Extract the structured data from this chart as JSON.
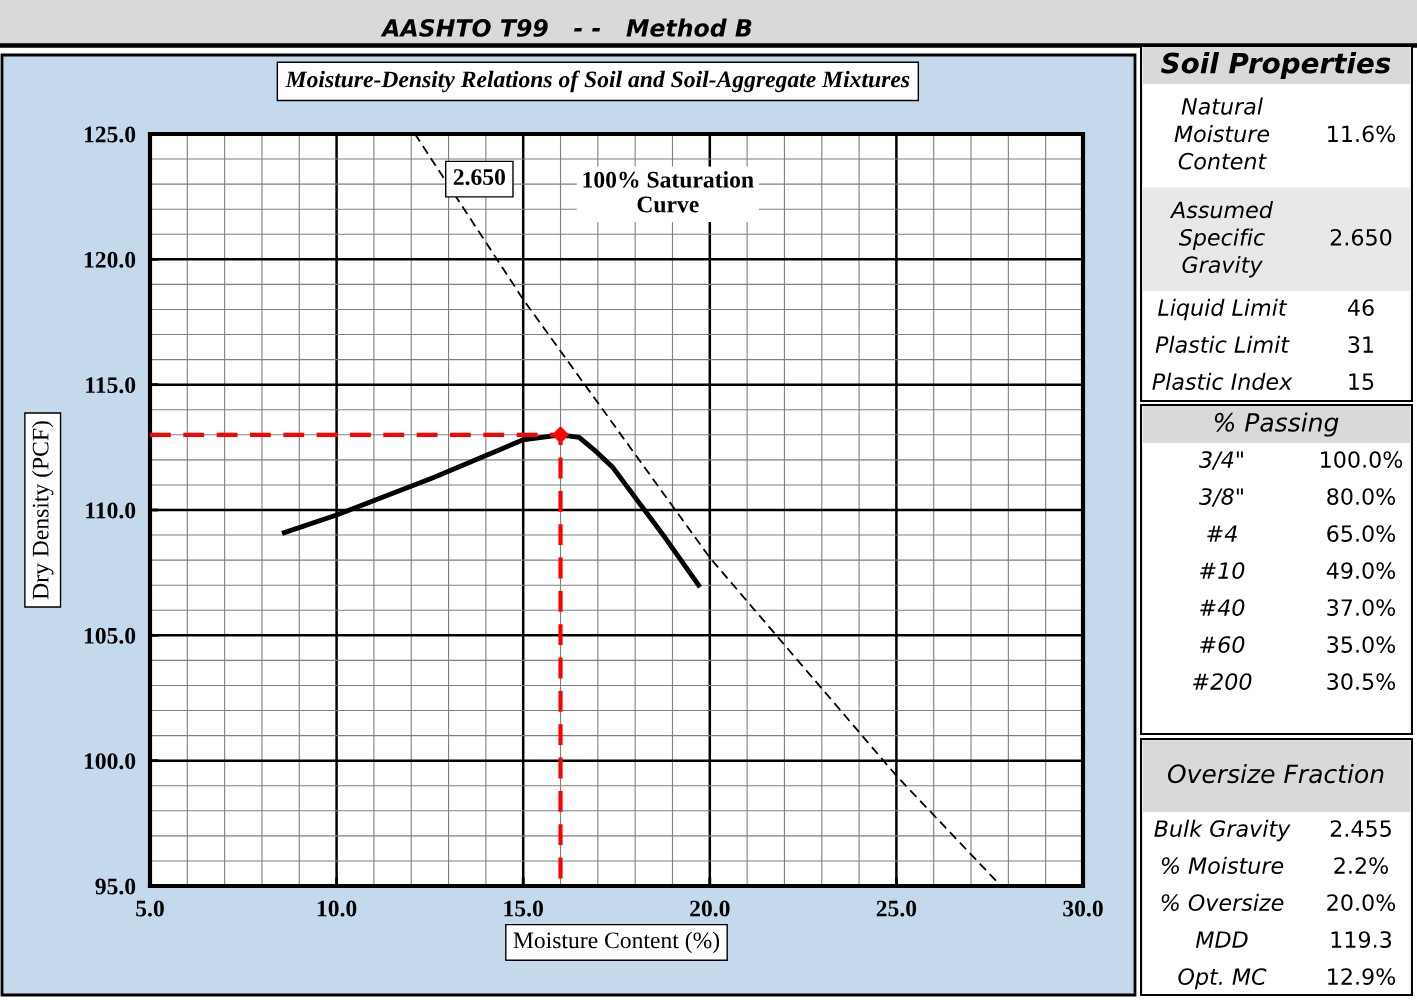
{
  "chart_data": [
    {
      "type": "line",
      "title": "AASHTO T99   - -   Method B",
      "subtitle": "Moisture-Density Relations of Soil and Soil-Aggregate Mixtures",
      "xlabel": "Moisture Content (%)",
      "ylabel": "Dry Density (PCF)",
      "xlim": [
        5,
        30
      ],
      "ylim": [
        95,
        125
      ],
      "xticks": [
        {
          "value": 5,
          "label": "5.0"
        },
        {
          "value": 10,
          "label": "10.0"
        },
        {
          "value": 15,
          "label": "15.0"
        },
        {
          "value": 20,
          "label": "20.0"
        },
        {
          "value": 25,
          "label": "25.0"
        },
        {
          "value": 30,
          "label": "30.0"
        }
      ],
      "yticks": [
        {
          "value": 95,
          "label": "95.0"
        },
        {
          "value": 100,
          "label": "100.0"
        },
        {
          "value": 105,
          "label": "105.0"
        },
        {
          "value": 110,
          "label": "110.0"
        },
        {
          "value": 115,
          "label": "115.0"
        },
        {
          "value": 120,
          "label": "120.0"
        },
        {
          "value": 125,
          "label": "125.0"
        }
      ],
      "grid": true,
      "series": [
        {
          "type": "line",
          "color": "#000000",
          "line_style": "solid",
          "marker": "none",
          "x": [
            8.6,
            10.0,
            12.6,
            15.0,
            16.0,
            16.5,
            16.9,
            17.4,
            18.8,
            19.7
          ],
          "values": [
            109.1,
            109.8,
            111.3,
            112.8,
            113.0,
            112.9,
            112.4,
            111.7,
            108.9,
            107.0
          ]
        },
        {
          "type": "line",
          "color": "#000000",
          "line_style": "dashed",
          "marker": "none",
          "x": [
            12.1,
            15.0,
            20.0,
            25.0,
            27.8
          ],
          "values": [
            125.0,
            118.4,
            108.1,
            99.4,
            95.0
          ]
        },
        {
          "type": "line",
          "color": "#ff0000",
          "line_style": "dashed",
          "marker": "none",
          "x": [
            5.0,
            16.0,
            16.0
          ],
          "values": [
            113.0,
            113.0,
            95.0
          ]
        },
        {
          "type": "scatter",
          "color": "#ff0000",
          "marker": "diamond",
          "x": [
            16.0
          ],
          "values": [
            113.0
          ]
        }
      ],
      "annotations": [
        "2.650",
        "100% Saturation\nCurve"
      ]
    },
    {
      "type": "other",
      "title": "Soil Properties",
      "annotations": [
        "Natural\nMoisture\nContent",
        "11.6%",
        "Assumed\nSpecific\nGravity",
        "2.650",
        "Liquid Limit",
        "46",
        "Plastic Limit",
        "31",
        "Plastic Index",
        "15"
      ]
    },
    {
      "type": "other",
      "title": "% Passing",
      "annotations": [
        "3/4\"",
        "100.0%",
        "3/8\"",
        "80.0%",
        "#4",
        "65.0%",
        "#10",
        "49.0%",
        "#40",
        "37.0%",
        "#60",
        "35.0%",
        "#200",
        "30.5%"
      ]
    },
    {
      "type": "other",
      "title": "Oversize Fraction",
      "annotations": [
        "Bulk Gravity",
        "2.455",
        "% Moisture",
        "2.2%",
        "% Oversize",
        "20.0%",
        "MDD",
        "119.3",
        "Opt. MC",
        "12.9%"
      ]
    }
  ]
}
